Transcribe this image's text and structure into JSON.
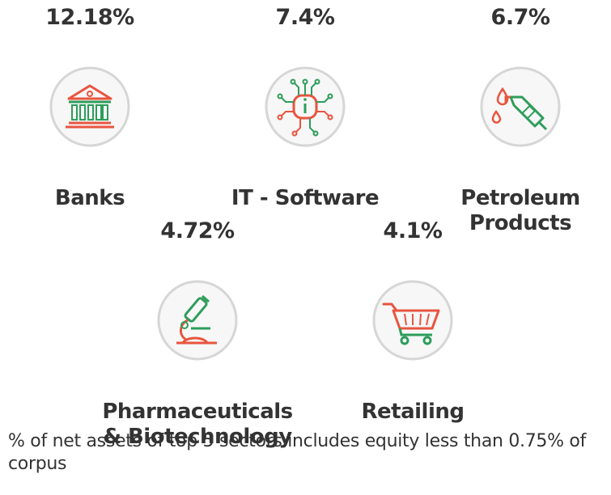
{
  "sectors": [
    {
      "id": "banks",
      "percent": "12.18%",
      "name_line1": "Banks",
      "name_line2": "",
      "icon": "bank-building-icon"
    },
    {
      "id": "it-software",
      "percent": "7.4%",
      "name_line1": "IT - Software",
      "name_line2": "",
      "icon": "circuit-chip-icon"
    },
    {
      "id": "petroleum",
      "percent": "6.7%",
      "name_line1": "Petroleum",
      "name_line2": "Products",
      "icon": "fuel-nozzle-icon"
    },
    {
      "id": "pharma",
      "percent": "4.72%",
      "name_line1": "Pharmaceuticals",
      "name_line2": "& Biotechnology",
      "icon": "microscope-icon"
    },
    {
      "id": "retailing",
      "percent": "4.1%",
      "name_line1": "Retailing",
      "name_line2": "",
      "icon": "shopping-cart-icon"
    }
  ],
  "footnote": "% of net assets of top 5 sectors includes equity less than 0.75% of corpus",
  "colors": {
    "icon_green": "#2e9d5b",
    "icon_red": "#e8553f",
    "circle_fill": "#f7f7f7",
    "circle_stroke": "#d6d6d6",
    "text": "#333333"
  }
}
